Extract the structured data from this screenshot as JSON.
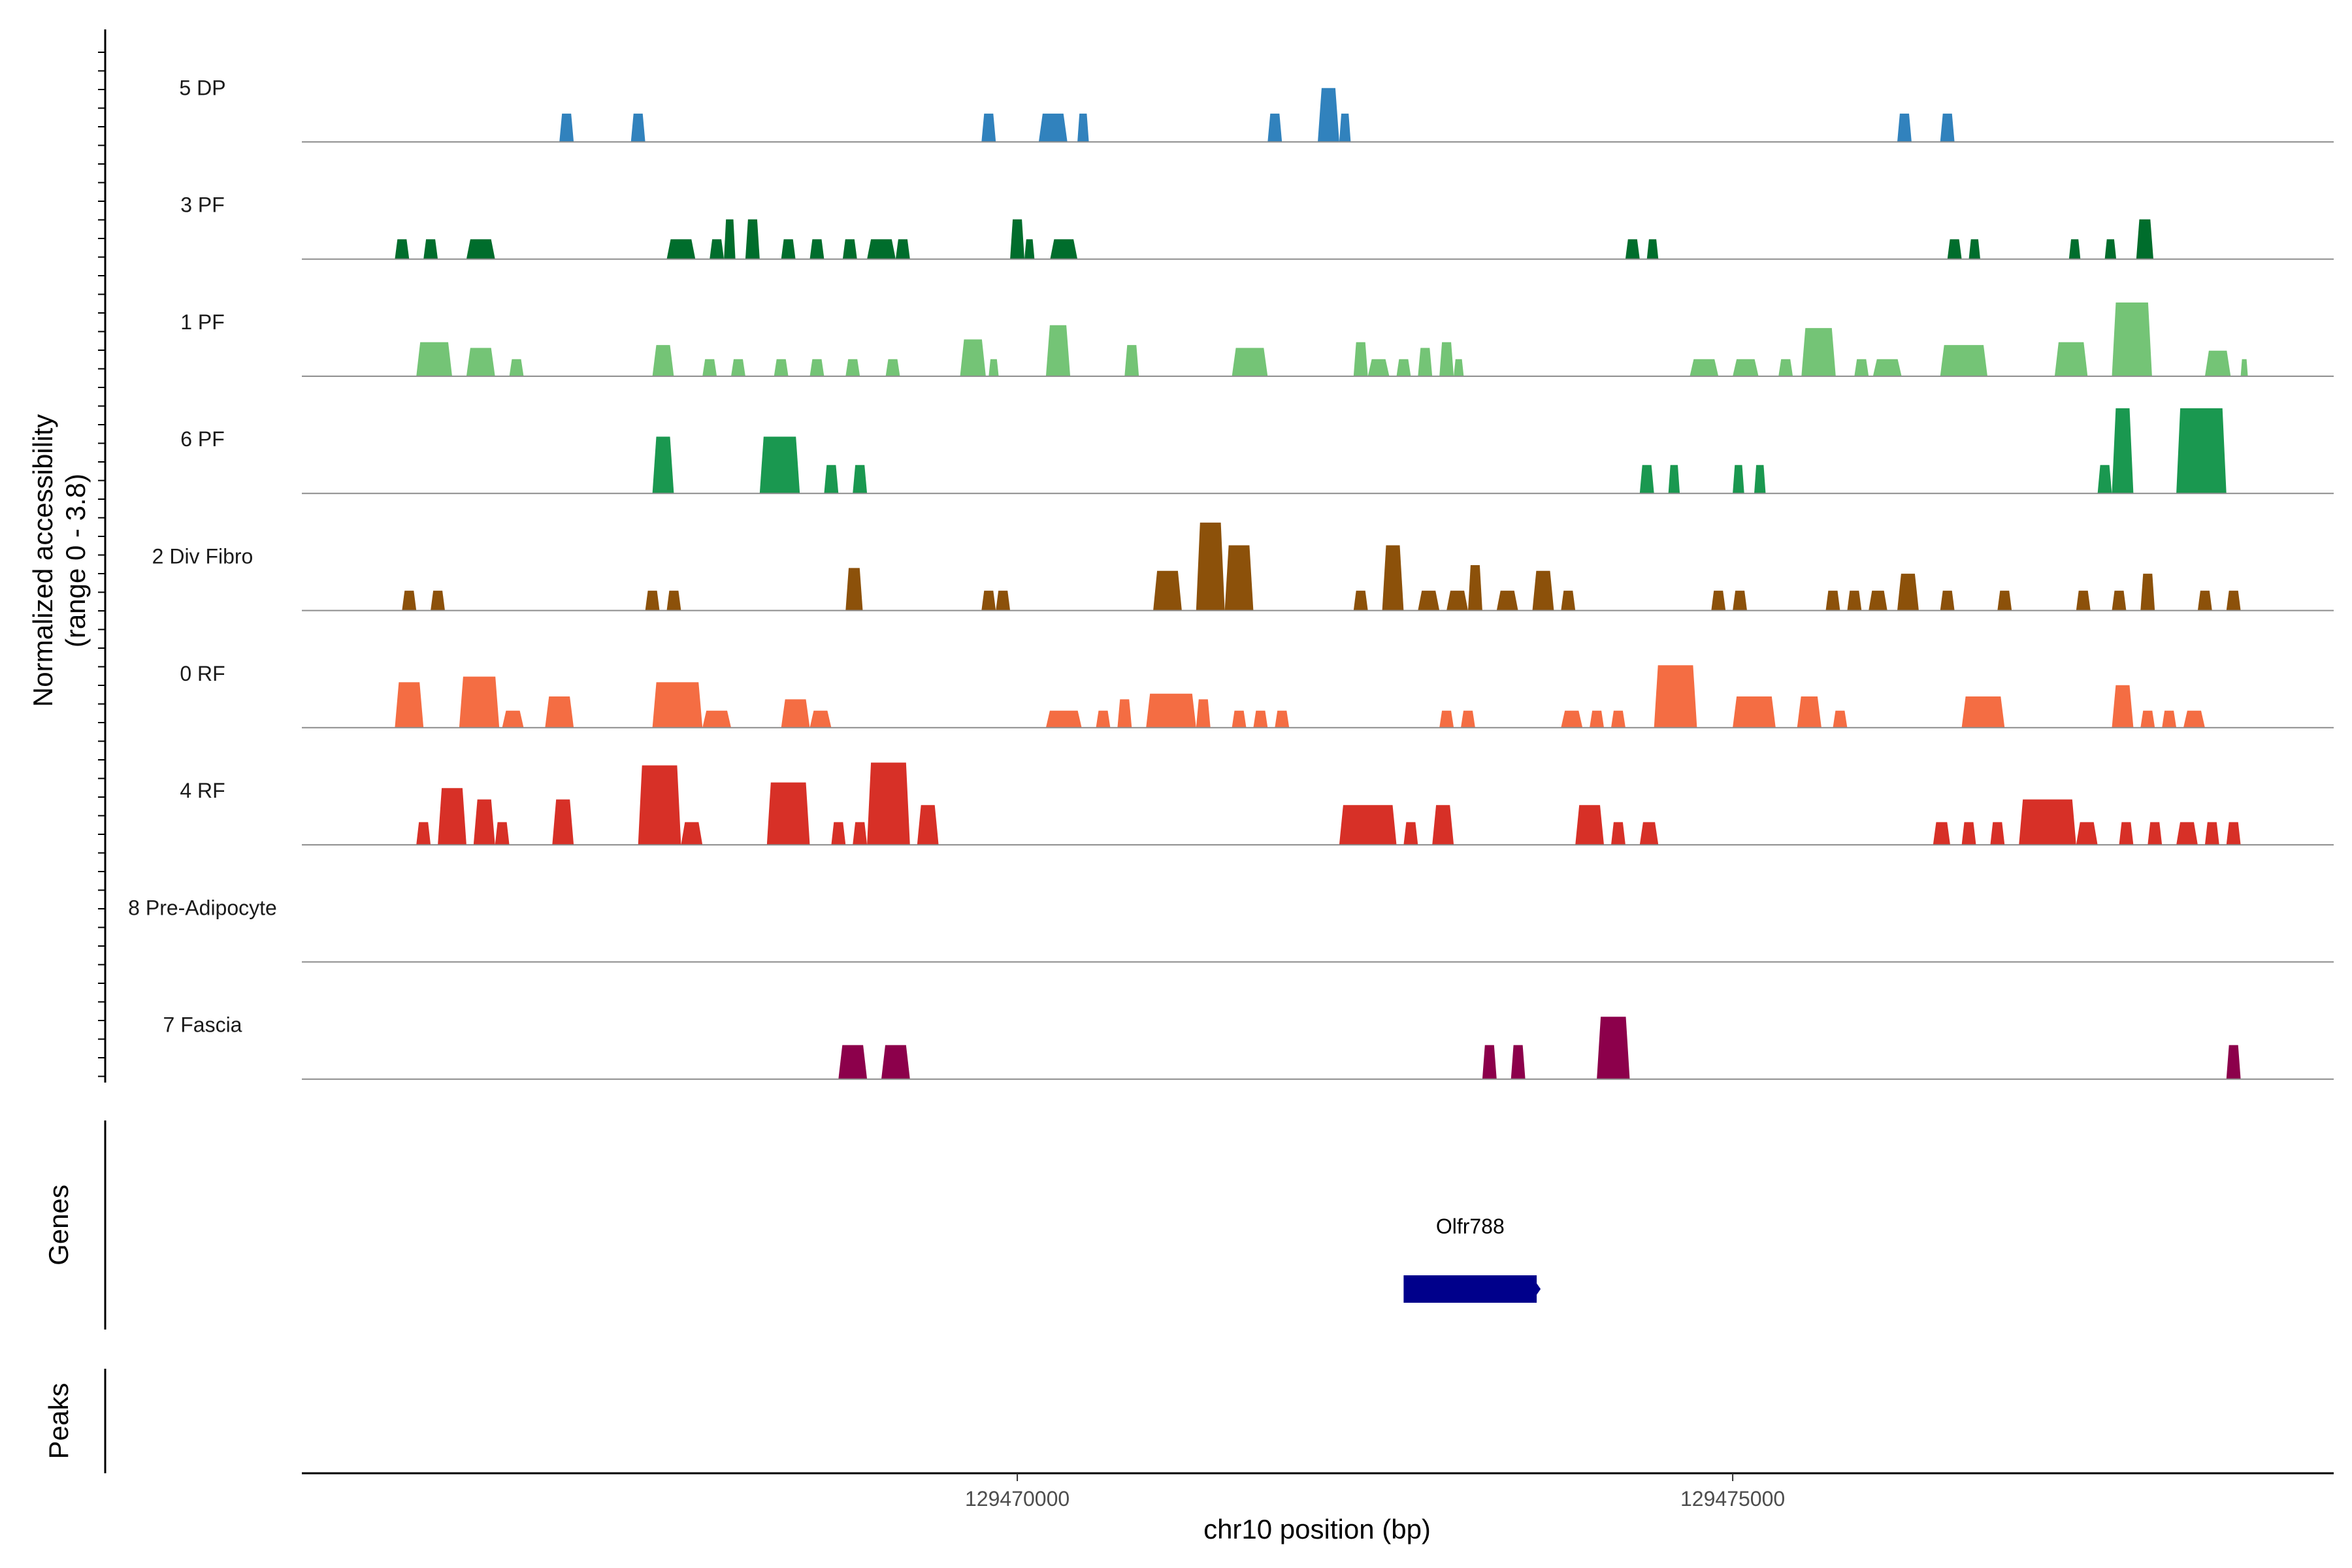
{
  "chart_data": {
    "type": "area",
    "title": "",
    "y_title_line1": "Normalized accessibility",
    "y_title_line2": "(range 0 - 3.8)",
    "xlabel": "chr10 position (bp)",
    "x_range": [
      129465000,
      129479200
    ],
    "y_range": [
      0,
      3.8
    ],
    "x_ticks": [
      {
        "value": 129470000,
        "label": "129470000"
      },
      {
        "value": 129475000,
        "label": "129475000"
      }
    ],
    "panel_titles": {
      "genes": "Genes",
      "peaks": "Peaks"
    },
    "genes": [
      {
        "name": "Olfr788",
        "start": 129472700,
        "end": 129473630,
        "color": "#00008b"
      }
    ],
    "tracks": [
      {
        "name": "5 DP",
        "color": "#3182bd",
        "peaks": [
          [
            129466800,
            129466900,
            1.0
          ],
          [
            129467300,
            129467400,
            1.0
          ],
          [
            129469750,
            129469850,
            1.0
          ],
          [
            129470150,
            129470350,
            1.0
          ],
          [
            129470420,
            129470500,
            1.0
          ],
          [
            129471750,
            129471850,
            1.0
          ],
          [
            129472100,
            129472250,
            1.9
          ],
          [
            129472250,
            129472330,
            1.0
          ],
          [
            129476150,
            129476250,
            1.0
          ],
          [
            129476450,
            129476550,
            1.0
          ]
        ]
      },
      {
        "name": "3 PF",
        "color": "#006d2c",
        "peaks": [
          [
            129465650,
            129465750,
            0.7
          ],
          [
            129465850,
            129465950,
            0.7
          ],
          [
            129466150,
            129466350,
            0.7
          ],
          [
            129467550,
            129467750,
            0.7
          ],
          [
            129467850,
            129467950,
            0.7
          ],
          [
            129467950,
            129468030,
            1.4
          ],
          [
            129468100,
            129468200,
            1.4
          ],
          [
            129468350,
            129468450,
            0.7
          ],
          [
            129468550,
            129468650,
            0.7
          ],
          [
            129468780,
            129468880,
            0.7
          ],
          [
            129468950,
            129469150,
            0.7
          ],
          [
            129469150,
            129469250,
            0.7
          ],
          [
            129469950,
            129470050,
            1.4
          ],
          [
            129470050,
            129470120,
            0.7
          ],
          [
            129470230,
            129470420,
            0.7
          ],
          [
            129474250,
            129474350,
            0.7
          ],
          [
            129474400,
            129474480,
            0.7
          ],
          [
            129476500,
            129476600,
            0.7
          ],
          [
            129476650,
            129476730,
            0.7
          ],
          [
            129477350,
            129477430,
            0.7
          ],
          [
            129477600,
            129477680,
            0.7
          ],
          [
            129477820,
            129477940,
            1.4
          ]
        ]
      },
      {
        "name": "1 PF",
        "color": "#74c476",
        "peaks": [
          [
            129465800,
            129466050,
            1.2
          ],
          [
            129466150,
            129466350,
            1.0
          ],
          [
            129466450,
            129466550,
            0.6
          ],
          [
            129467450,
            129467600,
            1.1
          ],
          [
            129467800,
            129467900,
            0.6
          ],
          [
            129468000,
            129468100,
            0.6
          ],
          [
            129468300,
            129468400,
            0.6
          ],
          [
            129468550,
            129468650,
            0.6
          ],
          [
            129468800,
            129468900,
            0.6
          ],
          [
            129469080,
            129469180,
            0.6
          ],
          [
            129469600,
            129469780,
            1.3
          ],
          [
            129469800,
            129469870,
            0.6
          ],
          [
            129470200,
            129470370,
            1.8
          ],
          [
            129470750,
            129470850,
            1.1
          ],
          [
            129471500,
            129471750,
            1.0
          ],
          [
            129472350,
            129472450,
            1.2
          ],
          [
            129472450,
            129472600,
            0.6
          ],
          [
            129472650,
            129472750,
            0.6
          ],
          [
            129472800,
            129472900,
            1.0
          ],
          [
            129472950,
            129473050,
            1.2
          ],
          [
            129473050,
            129473120,
            0.6
          ],
          [
            129474700,
            129474900,
            0.6
          ],
          [
            129475000,
            129475180,
            0.6
          ],
          [
            129475320,
            129475420,
            0.6
          ],
          [
            129475480,
            129475720,
            1.7
          ],
          [
            129475850,
            129475950,
            0.6
          ],
          [
            129475980,
            129476180,
            0.6
          ],
          [
            129476450,
            129476780,
            1.1
          ],
          [
            129477250,
            129477480,
            1.2
          ],
          [
            129477650,
            129477930,
            2.6
          ],
          [
            129478300,
            129478480,
            0.9
          ],
          [
            129478550,
            129478600,
            0.6
          ]
        ]
      },
      {
        "name": "6 PF",
        "color": "#1a9850",
        "peaks": [
          [
            129467450,
            129467600,
            2.0
          ],
          [
            129468200,
            129468480,
            2.0
          ],
          [
            129468650,
            129468750,
            1.0
          ],
          [
            129468850,
            129468950,
            1.0
          ],
          [
            129474350,
            129474450,
            1.0
          ],
          [
            129474550,
            129474630,
            1.0
          ],
          [
            129475000,
            129475080,
            1.0
          ],
          [
            129475150,
            129475230,
            1.0
          ],
          [
            129477550,
            129477650,
            1.0
          ],
          [
            129477650,
            129477800,
            3.0
          ],
          [
            129478100,
            129478450,
            3.0
          ]
        ]
      },
      {
        "name": "2 Div Fibro",
        "color": "#8c510a",
        "peaks": [
          [
            129465700,
            129465800,
            0.7
          ],
          [
            129465900,
            129466000,
            0.7
          ],
          [
            129467400,
            129467500,
            0.7
          ],
          [
            129467550,
            129467650,
            0.7
          ],
          [
            129468800,
            129468920,
            1.5
          ],
          [
            129469750,
            129469850,
            0.7
          ],
          [
            129469850,
            129469950,
            0.7
          ],
          [
            129470950,
            129471150,
            1.4
          ],
          [
            129471250,
            129471450,
            3.1
          ],
          [
            129471450,
            129471650,
            2.3
          ],
          [
            129472350,
            129472450,
            0.7
          ],
          [
            129472550,
            129472700,
            2.3
          ],
          [
            129472800,
            129472950,
            0.7
          ],
          [
            129473000,
            129473150,
            0.7
          ],
          [
            129473150,
            129473250,
            1.6
          ],
          [
            129473350,
            129473500,
            0.7
          ],
          [
            129473600,
            129473750,
            1.4
          ],
          [
            129473800,
            129473900,
            0.7
          ],
          [
            129474850,
            129474950,
            0.7
          ],
          [
            129475000,
            129475100,
            0.7
          ],
          [
            129475650,
            129475750,
            0.7
          ],
          [
            129475800,
            129475900,
            0.7
          ],
          [
            129475950,
            129476080,
            0.7
          ],
          [
            129476150,
            129476300,
            1.3
          ],
          [
            129476450,
            129476550,
            0.7
          ],
          [
            129476850,
            129476950,
            0.7
          ],
          [
            129477400,
            129477500,
            0.7
          ],
          [
            129477650,
            129477750,
            0.7
          ],
          [
            129477850,
            129477950,
            1.3
          ],
          [
            129478250,
            129478350,
            0.7
          ],
          [
            129478450,
            129478550,
            0.7
          ]
        ]
      },
      {
        "name": "0 RF",
        "color": "#f46d43",
        "peaks": [
          [
            129465650,
            129465850,
            1.6
          ],
          [
            129466100,
            129466380,
            1.8
          ],
          [
            129466400,
            129466550,
            0.6
          ],
          [
            129466700,
            129466900,
            1.1
          ],
          [
            129467450,
            129467800,
            1.6
          ],
          [
            129467800,
            129468000,
            0.6
          ],
          [
            129468350,
            129468550,
            1.0
          ],
          [
            129468550,
            129468700,
            0.6
          ],
          [
            129470200,
            129470450,
            0.6
          ],
          [
            129470550,
            129470650,
            0.6
          ],
          [
            129470700,
            129470800,
            1.0
          ],
          [
            129470900,
            129471250,
            1.2
          ],
          [
            129471250,
            129471350,
            1.0
          ],
          [
            129471500,
            129471600,
            0.6
          ],
          [
            129471650,
            129471750,
            0.6
          ],
          [
            129471800,
            129471900,
            0.6
          ],
          [
            129472950,
            129473050,
            0.6
          ],
          [
            129473100,
            129473200,
            0.6
          ],
          [
            129473800,
            129473950,
            0.6
          ],
          [
            129474000,
            129474100,
            0.6
          ],
          [
            129474150,
            129474250,
            0.6
          ],
          [
            129474450,
            129474750,
            2.2
          ],
          [
            129475000,
            129475300,
            1.1
          ],
          [
            129475450,
            129475620,
            1.1
          ],
          [
            129475700,
            129475800,
            0.6
          ],
          [
            129476600,
            129476900,
            1.1
          ],
          [
            129477650,
            129477800,
            1.5
          ],
          [
            129477850,
            129477950,
            0.6
          ],
          [
            129478000,
            129478100,
            0.6
          ],
          [
            129478150,
            129478300,
            0.6
          ]
        ]
      },
      {
        "name": "4 RF",
        "color": "#d73027",
        "peaks": [
          [
            129465800,
            129465900,
            0.8
          ],
          [
            129465950,
            129466150,
            2.0
          ],
          [
            129466200,
            129466350,
            1.6
          ],
          [
            129466350,
            129466450,
            0.8
          ],
          [
            129466750,
            129466900,
            1.6
          ],
          [
            129467350,
            129467650,
            2.8
          ],
          [
            129467650,
            129467800,
            0.8
          ],
          [
            129468250,
            129468550,
            2.2
          ],
          [
            129468700,
            129468800,
            0.8
          ],
          [
            129468850,
            129468950,
            0.8
          ],
          [
            129468950,
            129469250,
            2.9
          ],
          [
            129469300,
            129469450,
            1.4
          ],
          [
            129472250,
            129472650,
            1.4
          ],
          [
            129472700,
            129472800,
            0.8
          ],
          [
            129472900,
            129473050,
            1.4
          ],
          [
            129473900,
            129474100,
            1.4
          ],
          [
            129474150,
            129474250,
            0.8
          ],
          [
            129474350,
            129474480,
            0.8
          ],
          [
            129476400,
            129476520,
            0.8
          ],
          [
            129476600,
            129476700,
            0.8
          ],
          [
            129476800,
            129476900,
            0.8
          ],
          [
            129477000,
            129477400,
            1.6
          ],
          [
            129477400,
            129477550,
            0.8
          ],
          [
            129477700,
            129477800,
            0.8
          ],
          [
            129477900,
            129478000,
            0.8
          ],
          [
            129478100,
            129478250,
            0.8
          ],
          [
            129478300,
            129478400,
            0.8
          ],
          [
            129478450,
            129478550,
            0.8
          ]
        ]
      },
      {
        "name": "8 Pre-Adipocyte",
        "color": "#bdbdbd",
        "peaks": []
      },
      {
        "name": "7 Fascia",
        "color": "#8c004b",
        "peaks": [
          [
            129468750,
            129468950,
            1.2
          ],
          [
            129469050,
            129469250,
            1.2
          ],
          [
            129473250,
            129473350,
            1.2
          ],
          [
            129473450,
            129473550,
            1.2
          ],
          [
            129474050,
            129474280,
            2.2
          ],
          [
            129478450,
            129478550,
            1.2
          ]
        ]
      }
    ]
  }
}
